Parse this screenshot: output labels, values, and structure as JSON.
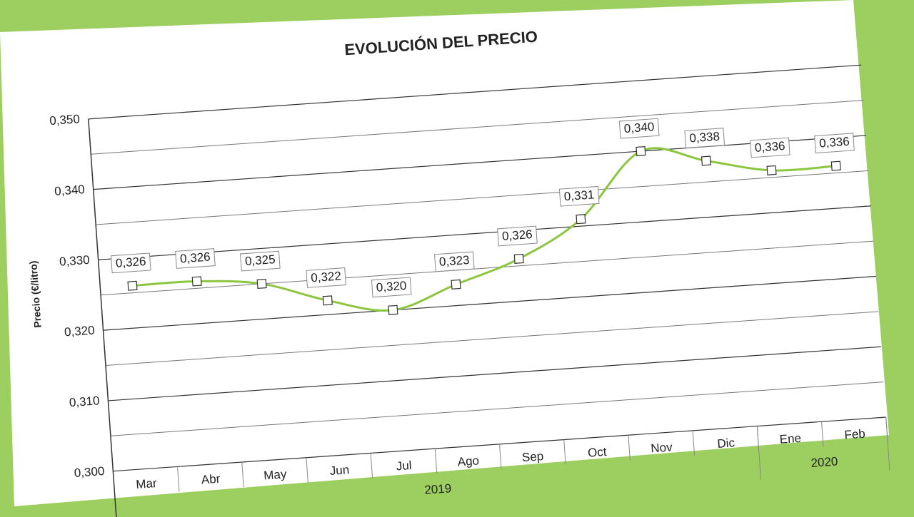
{
  "chart_data": {
    "type": "line",
    "title": "EVOLUCIÓN DEL PRECIO",
    "y_label": "Precio (€/litro)",
    "categories": [
      "Mar",
      "Abr",
      "May",
      "Jun",
      "Jul",
      "Ago",
      "Sep",
      "Oct",
      "Nov",
      "Dic",
      "Ene",
      "Feb"
    ],
    "groups": [
      {
        "label": "2019",
        "span": 10
      },
      {
        "label": "2020",
        "span": 2
      }
    ],
    "series": [
      {
        "name": "Precio",
        "color": "#8cc63f",
        "values": [
          0.326,
          0.326,
          0.325,
          0.322,
          0.32,
          0.323,
          0.326,
          0.331,
          0.34,
          0.338,
          0.336,
          0.336
        ],
        "value_labels": [
          "0,326",
          "0,326",
          "0,325",
          "0,322",
          "0,320",
          "0,323",
          "0,326",
          "0,331",
          "0,340",
          "0,338",
          "0,336",
          "0,336"
        ]
      }
    ],
    "ylim": [
      0.3,
      0.35
    ],
    "yticks": [
      {
        "value": 0.3,
        "label": "0,300"
      },
      {
        "value": 0.31,
        "label": "0,310"
      },
      {
        "value": 0.32,
        "label": "0,320"
      },
      {
        "value": 0.33,
        "label": "0,330"
      },
      {
        "value": 0.34,
        "label": "0,340"
      },
      {
        "value": 0.35,
        "label": "0,350"
      }
    ],
    "minor_yticks": [
      0.305,
      0.315,
      0.325,
      0.335,
      0.345
    ],
    "grid": true,
    "smooth": true,
    "marker": "square"
  }
}
